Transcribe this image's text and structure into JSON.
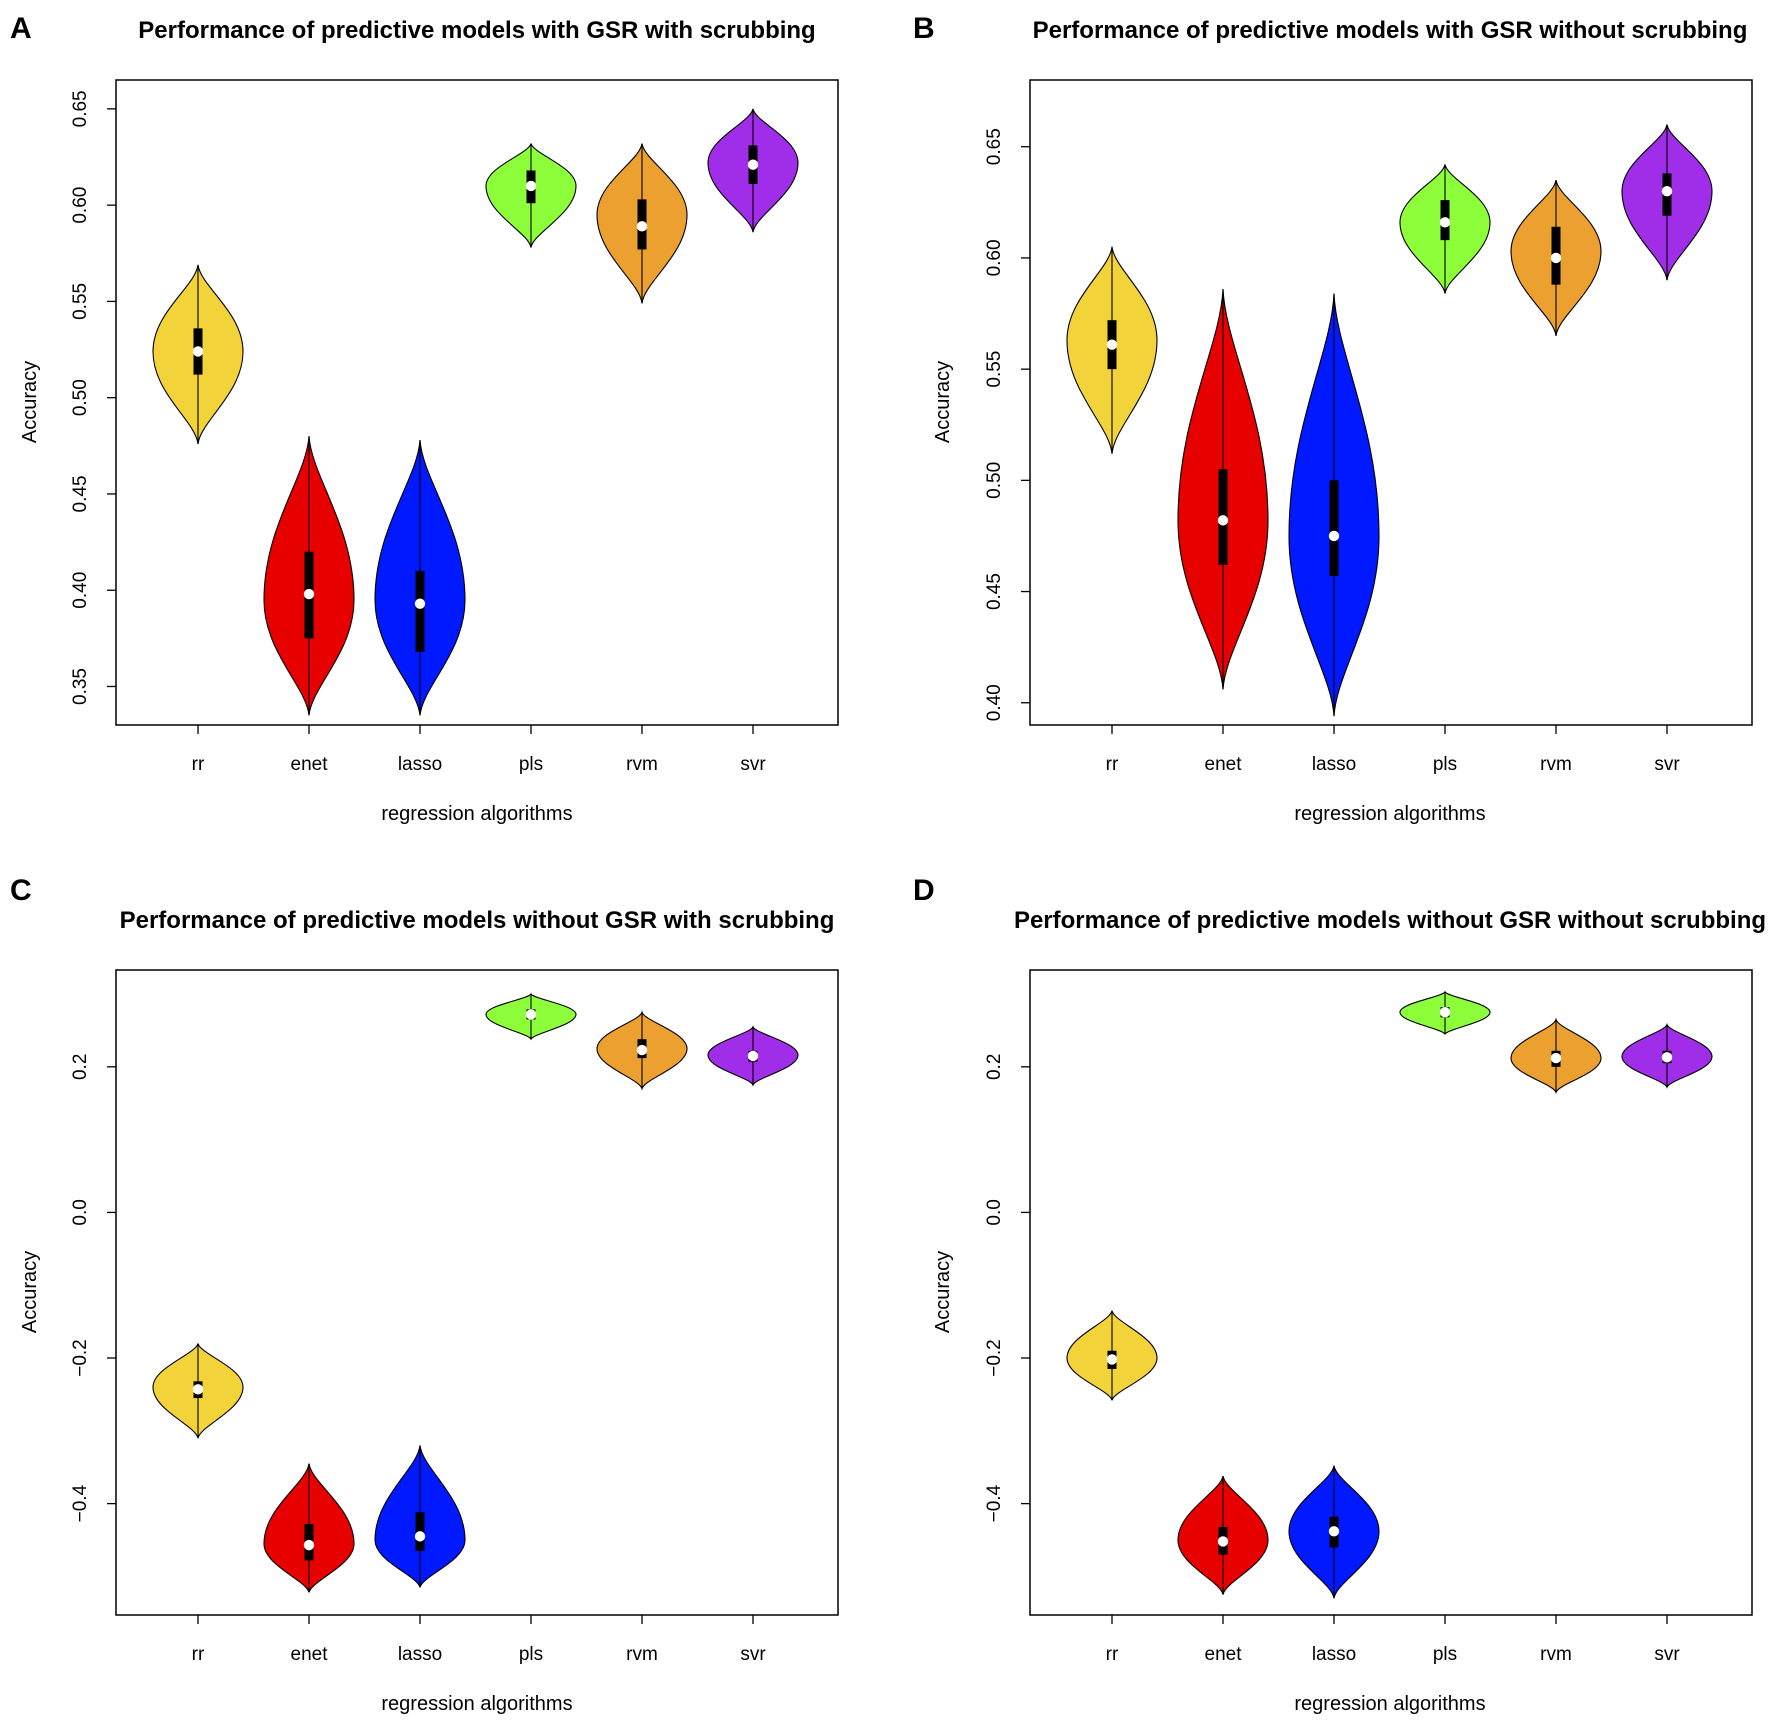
{
  "figure": {
    "panel_letters": [
      "A",
      "B",
      "C",
      "D"
    ]
  },
  "chart_data": [
    {
      "type": "violin",
      "title": "Performance of predictive models with GSR with scrubbing",
      "xlabel": "regression algorithms",
      "ylabel": "Accuracy",
      "ylim": [
        0.33,
        0.665
      ],
      "yticks": [
        0.35,
        0.4,
        0.45,
        0.5,
        0.55,
        0.6,
        0.65
      ],
      "ytick_labels": [
        "0.35",
        "0.40",
        "0.45",
        "0.50",
        "0.55",
        "0.60",
        "0.65"
      ],
      "categories": [
        "rr",
        "enet",
        "lasso",
        "pls",
        "rvm",
        "svr"
      ],
      "colors": [
        "#f2d33a",
        "#e60000",
        "#0019ff",
        "#8cff3a",
        "#eba02f",
        "#a02ee8"
      ],
      "stats": [
        {
          "min": 0.476,
          "q1": 0.512,
          "median": 0.524,
          "q3": 0.536,
          "max": 0.569,
          "bulge": 0.524
        },
        {
          "min": 0.335,
          "q1": 0.375,
          "median": 0.398,
          "q3": 0.42,
          "max": 0.48,
          "bulge": 0.395
        },
        {
          "min": 0.335,
          "q1": 0.368,
          "median": 0.393,
          "q3": 0.41,
          "max": 0.478,
          "bulge": 0.395
        },
        {
          "min": 0.578,
          "q1": 0.601,
          "median": 0.61,
          "q3": 0.618,
          "max": 0.632,
          "bulge": 0.61
        },
        {
          "min": 0.549,
          "q1": 0.577,
          "median": 0.589,
          "q3": 0.603,
          "max": 0.632,
          "bulge": 0.595
        },
        {
          "min": 0.586,
          "q1": 0.611,
          "median": 0.621,
          "q3": 0.631,
          "max": 0.65,
          "bulge": 0.622
        }
      ]
    },
    {
      "type": "violin",
      "title": "Performance of predictive models with GSR without scrubbing",
      "xlabel": "regression algorithms",
      "ylabel": "Accuracy",
      "ylim": [
        0.39,
        0.68
      ],
      "yticks": [
        0.4,
        0.45,
        0.5,
        0.55,
        0.6,
        0.65
      ],
      "ytick_labels": [
        "0.40",
        "0.45",
        "0.50",
        "0.55",
        "0.60",
        "0.65"
      ],
      "categories": [
        "rr",
        "enet",
        "lasso",
        "pls",
        "rvm",
        "svr"
      ],
      "colors": [
        "#f2d33a",
        "#e60000",
        "#0019ff",
        "#8cff3a",
        "#eba02f",
        "#a02ee8"
      ],
      "stats": [
        {
          "min": 0.512,
          "q1": 0.55,
          "median": 0.561,
          "q3": 0.572,
          "max": 0.605,
          "bulge": 0.563
        },
        {
          "min": 0.406,
          "q1": 0.462,
          "median": 0.482,
          "q3": 0.505,
          "max": 0.586,
          "bulge": 0.482
        },
        {
          "min": 0.394,
          "q1": 0.457,
          "median": 0.475,
          "q3": 0.5,
          "max": 0.584,
          "bulge": 0.475
        },
        {
          "min": 0.584,
          "q1": 0.608,
          "median": 0.616,
          "q3": 0.626,
          "max": 0.642,
          "bulge": 0.616
        },
        {
          "min": 0.565,
          "q1": 0.588,
          "median": 0.6,
          "q3": 0.614,
          "max": 0.635,
          "bulge": 0.603
        },
        {
          "min": 0.59,
          "q1": 0.619,
          "median": 0.63,
          "q3": 0.638,
          "max": 0.66,
          "bulge": 0.63
        }
      ]
    },
    {
      "type": "violin",
      "title": "Performance of predictive models without GSR with scrubbing",
      "xlabel": "regression algorithms",
      "ylabel": "Accuracy",
      "ylim": [
        -0.553,
        0.333
      ],
      "yticks": [
        -0.4,
        -0.2,
        0.0,
        0.2
      ],
      "ytick_labels": [
        "−0.4",
        "−0.2",
        "0.0",
        "0.2"
      ],
      "categories": [
        "rr",
        "enet",
        "lasso",
        "pls",
        "rvm",
        "svr"
      ],
      "colors": [
        "#f2d33a",
        "#e60000",
        "#0019ff",
        "#8cff3a",
        "#eba02f",
        "#a02ee8"
      ],
      "stats": [
        {
          "min": -0.31,
          "q1": -0.255,
          "median": -0.243,
          "q3": -0.232,
          "max": -0.18,
          "bulge": -0.24
        },
        {
          "min": -0.522,
          "q1": -0.478,
          "median": -0.457,
          "q3": -0.428,
          "max": -0.345,
          "bulge": -0.455
        },
        {
          "min": -0.515,
          "q1": -0.465,
          "median": -0.445,
          "q3": -0.412,
          "max": -0.32,
          "bulge": -0.45
        },
        {
          "min": 0.238,
          "q1": 0.265,
          "median": 0.272,
          "q3": 0.279,
          "max": 0.3,
          "bulge": 0.272
        },
        {
          "min": 0.17,
          "q1": 0.212,
          "median": 0.223,
          "q3": 0.238,
          "max": 0.275,
          "bulge": 0.225
        },
        {
          "min": 0.175,
          "q1": 0.207,
          "median": 0.215,
          "q3": 0.222,
          "max": 0.255,
          "bulge": 0.216
        }
      ]
    },
    {
      "type": "violin",
      "title": "Performance of predictive models without GSR without scrubbing",
      "xlabel": "regression algorithms",
      "ylabel": "Accuracy",
      "ylim": [
        -0.553,
        0.333
      ],
      "yticks": [
        -0.4,
        -0.2,
        0.0,
        0.2
      ],
      "ytick_labels": [
        "−0.4",
        "−0.2",
        "0.0",
        "0.2"
      ],
      "categories": [
        "rr",
        "enet",
        "lasso",
        "pls",
        "rvm",
        "svr"
      ],
      "colors": [
        "#f2d33a",
        "#e60000",
        "#0019ff",
        "#8cff3a",
        "#eba02f",
        "#a02ee8"
      ],
      "stats": [
        {
          "min": -0.258,
          "q1": -0.215,
          "median": -0.202,
          "q3": -0.19,
          "max": -0.135,
          "bulge": -0.2
        },
        {
          "min": -0.525,
          "q1": -0.47,
          "median": -0.452,
          "q3": -0.432,
          "max": -0.362,
          "bulge": -0.45
        },
        {
          "min": -0.53,
          "q1": -0.46,
          "median": -0.438,
          "q3": -0.418,
          "max": -0.348,
          "bulge": -0.438
        },
        {
          "min": 0.245,
          "q1": 0.268,
          "median": 0.275,
          "q3": 0.282,
          "max": 0.303,
          "bulge": 0.275
        },
        {
          "min": 0.165,
          "q1": 0.2,
          "median": 0.212,
          "q3": 0.222,
          "max": 0.265,
          "bulge": 0.212
        },
        {
          "min": 0.172,
          "q1": 0.205,
          "median": 0.213,
          "q3": 0.222,
          "max": 0.258,
          "bulge": 0.214
        }
      ]
    }
  ]
}
